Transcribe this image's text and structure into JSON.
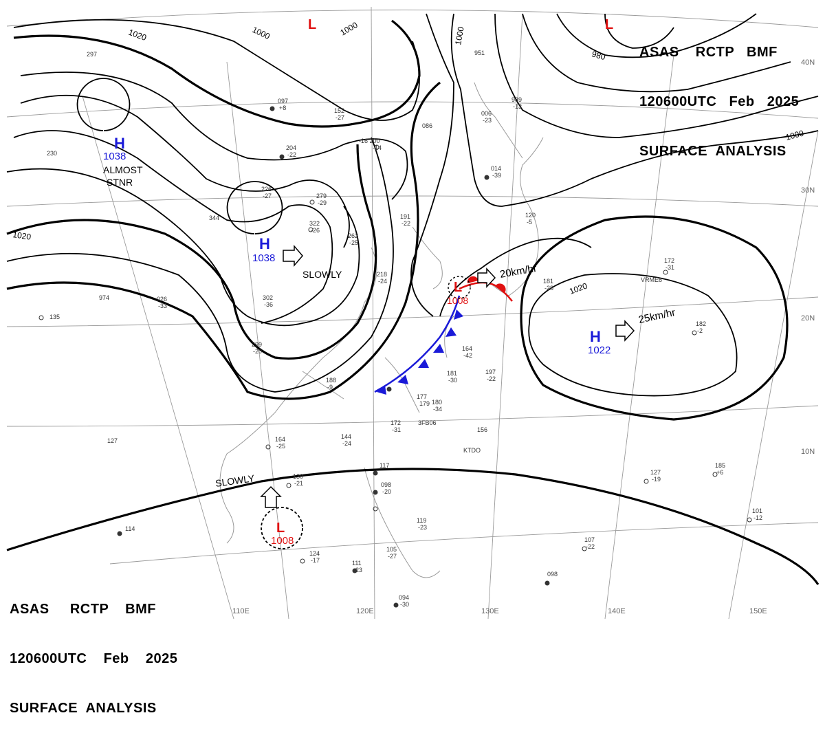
{
  "header": {
    "line1": "ASAS    RCTP   BMF",
    "line2": "120600UTC   Feb   2025",
    "line3": "SURFACE  ANALYSIS"
  },
  "footer": {
    "line1": "ASAS     RCTP    BMF",
    "line2": "120600UTC    Feb    2025",
    "line3": "SURFACE  ANALYSIS"
  },
  "longitudes": [
    "110E",
    "120E",
    "130E",
    "140E",
    "150E"
  ],
  "latitudes": [
    "40N",
    "30N",
    "20N",
    "10N"
  ],
  "pressure_centers": [
    {
      "type": "H",
      "value": "1038",
      "note": "ALMOST\nSTNR"
    },
    {
      "type": "H",
      "value": "1038",
      "movement": "SLOWLY"
    },
    {
      "type": "H",
      "value": "1022",
      "movement": "25km/hr"
    },
    {
      "type": "L",
      "value": "1008",
      "movement": "20km/hr"
    },
    {
      "type": "L",
      "value": "1008",
      "movement": "SLOWLY"
    },
    {
      "type": "L",
      "value": ""
    },
    {
      "type": "L",
      "value": ""
    }
  ],
  "isobar_labels": [
    "1020",
    "1000",
    "1000",
    "1000",
    "980",
    "1000",
    "1020",
    "1020"
  ],
  "station_labels": [
    "-16 200",
    "-14",
    "279",
    "-29",
    "322",
    "-26",
    "226",
    "-27",
    "191",
    "-22",
    "262",
    "-25",
    "218",
    "-24",
    "302",
    "-36",
    "299",
    "-20",
    "188",
    "-9",
    "164",
    "-42",
    "181",
    "-30",
    "197",
    "-22",
    "177",
    "179",
    "180",
    "-34",
    "172",
    "-31",
    "156",
    "144",
    "-24",
    "130",
    "-21",
    "164",
    "-25",
    "124",
    "-17",
    "111",
    "-23",
    "105",
    "-27",
    "094",
    "-30",
    "098",
    "-20",
    "117",
    "119",
    "-23",
    "107",
    "-22",
    "098",
    "127",
    "-19",
    "185",
    "+6",
    "101",
    "-12",
    "172",
    "-31",
    "182",
    "-2",
    "181",
    "-28",
    "120",
    "-5",
    "014",
    "-39",
    "006",
    "-23",
    "989",
    "-13",
    "951",
    "086",
    "152",
    "-27",
    "204",
    "-22",
    "097",
    "+8",
    "297",
    "230",
    "344",
    "026",
    "-33",
    "974",
    "135",
    "127",
    "114",
    "VRME6",
    "KTDO",
    "3FB06"
  ],
  "colors": {
    "high": "#1a1ad8",
    "low": "#e01010",
    "cold_front": "#1a1ad8",
    "warm_front": "#e01010",
    "isobar": "#000000",
    "coast": "#9a9a9a"
  }
}
